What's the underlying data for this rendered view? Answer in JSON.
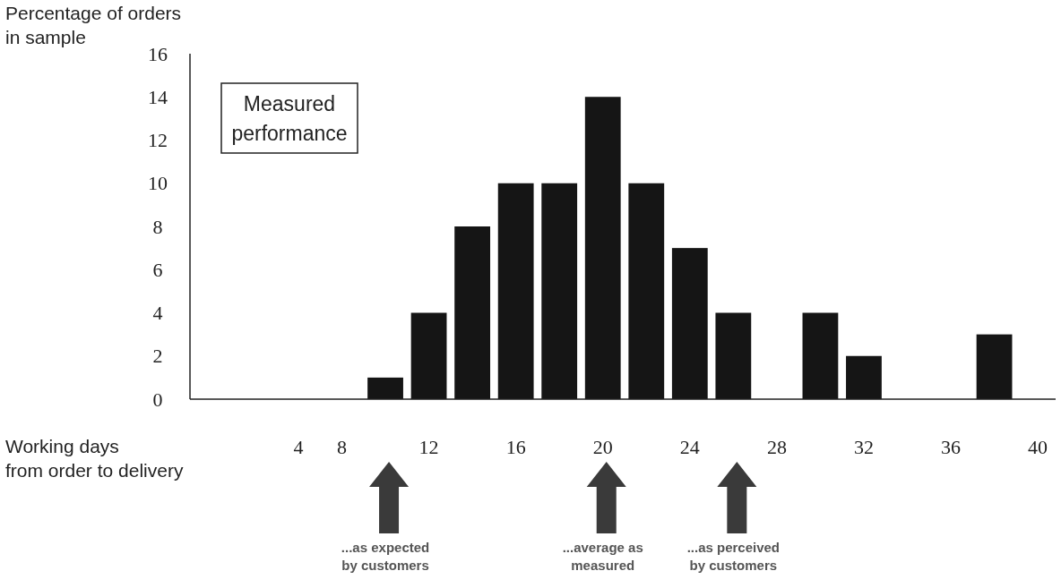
{
  "chart_data": {
    "type": "bar",
    "ylabel": "Percentage of orders\nin sample",
    "xlabel": "Working days\nfrom order to delivery",
    "categories": [
      null,
      null,
      "4",
      "8",
      null,
      "12",
      null,
      "16",
      null,
      "20",
      null,
      "24",
      null,
      "28",
      null,
      "32",
      null,
      "36",
      null,
      "40"
    ],
    "values": [
      null,
      null,
      null,
      null,
      1,
      4,
      8,
      10,
      10,
      14,
      10,
      7,
      4,
      null,
      4,
      2,
      null,
      null,
      3,
      null
    ],
    "color": "#151515",
    "ylim": [
      0,
      16
    ],
    "yticks": [
      0,
      2,
      4,
      6,
      8,
      10,
      12,
      14,
      16
    ],
    "annotations": [
      "Measured\nperformance",
      "...as expected\nby customers",
      "...average as\nmeasured",
      "...as perceived\nby customers"
    ]
  }
}
